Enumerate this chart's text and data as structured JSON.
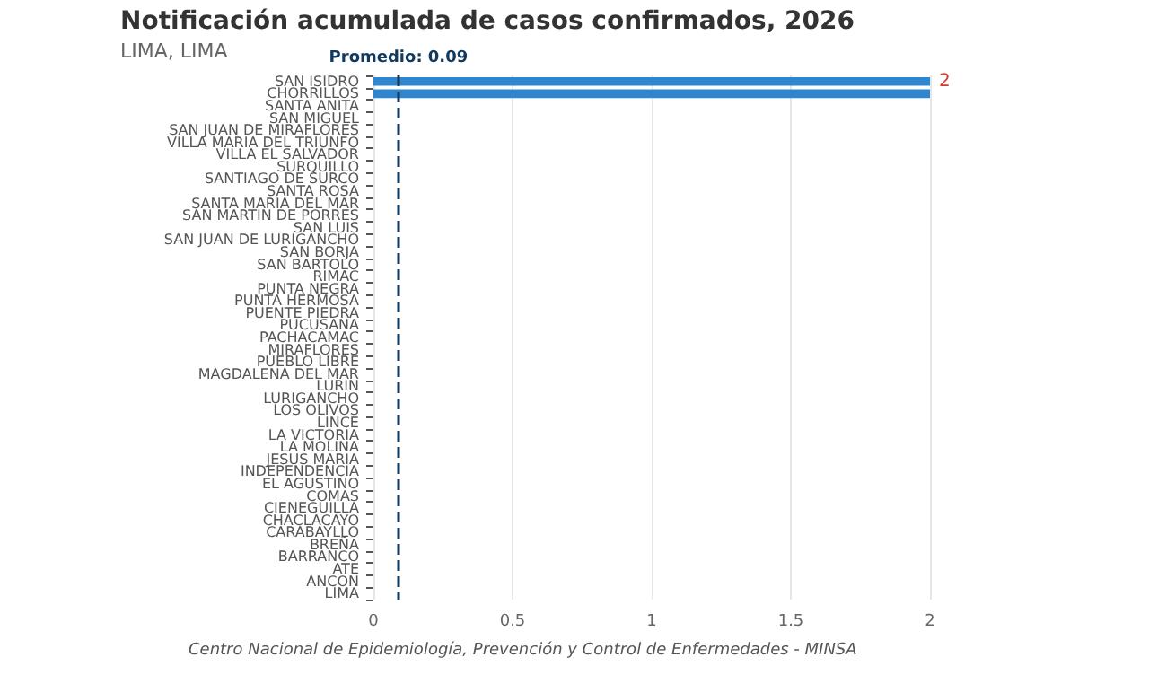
{
  "chart_data": {
    "type": "bar",
    "orientation": "horizontal",
    "title": "Notificación acumulada de casos confirmados, 2026",
    "subtitle": "LIMA, LIMA",
    "categories": [
      "SAN ISIDRO",
      "CHORRILLOS",
      "SANTA ANITA",
      "SAN MIGUEL",
      "SAN JUAN DE MIRAFLORES",
      "VILLA MARIA DEL TRIUNFO",
      "VILLA EL SALVADOR",
      "SURQUILLO",
      "SANTIAGO DE SURCO",
      "SANTA ROSA",
      "SANTA MARIA DEL MAR",
      "SAN MARTIN DE PORRES",
      "SAN LUIS",
      "SAN JUAN DE LURIGANCHO",
      "SAN BORJA",
      "SAN BARTOLO",
      "RIMAC",
      "PUNTA NEGRA",
      "PUNTA HERMOSA",
      "PUENTE PIEDRA",
      "PUCUSANA",
      "PACHACAMAC",
      "MIRAFLORES",
      "PUEBLO LIBRE",
      "MAGDALENA DEL MAR",
      "LURIN",
      "LURIGANCHO",
      "LOS OLIVOS",
      "LINCE",
      "LA VICTORIA",
      "LA MOLINA",
      "JESUS MARIA",
      "INDEPENDENCIA",
      "EL AGUSTINO",
      "COMAS",
      "CIENEGUILLA",
      "CHACLACAYO",
      "CARABAYLLO",
      "BREÑA",
      "BARRANCO",
      "ATE",
      "ANCON",
      "LIMA"
    ],
    "values": [
      2,
      2,
      0,
      0,
      0,
      0,
      0,
      0,
      0,
      0,
      0,
      0,
      0,
      0,
      0,
      0,
      0,
      0,
      0,
      0,
      0,
      0,
      0,
      0,
      0,
      0,
      0,
      0,
      0,
      0,
      0,
      0,
      0,
      0,
      0,
      0,
      0,
      0,
      0,
      0,
      0,
      0,
      0
    ],
    "color": "#2e86d0",
    "value_labels": [
      "2",
      null,
      null,
      null,
      null,
      null,
      null,
      null,
      null,
      null,
      null,
      null,
      null,
      null,
      null,
      null,
      null,
      null,
      null,
      null,
      null,
      null,
      null,
      null,
      null,
      null,
      null,
      null,
      null,
      null,
      null,
      null,
      null,
      null,
      null,
      null,
      null,
      null,
      null,
      null,
      null,
      null,
      null
    ],
    "xlim": [
      0,
      2
    ],
    "xticks": [
      0,
      0.5,
      1,
      1.5,
      2
    ],
    "grid": "x",
    "ref_lines": [
      {
        "axis": "x",
        "value": 0.09,
        "label": "Promedio: 0.09",
        "color": "#123a5e",
        "line_style": "dashed"
      }
    ],
    "annotations": [
      "Centro Nacional de Epidemiología, Prevención y Control de Enfermedades - MINSA"
    ]
  }
}
